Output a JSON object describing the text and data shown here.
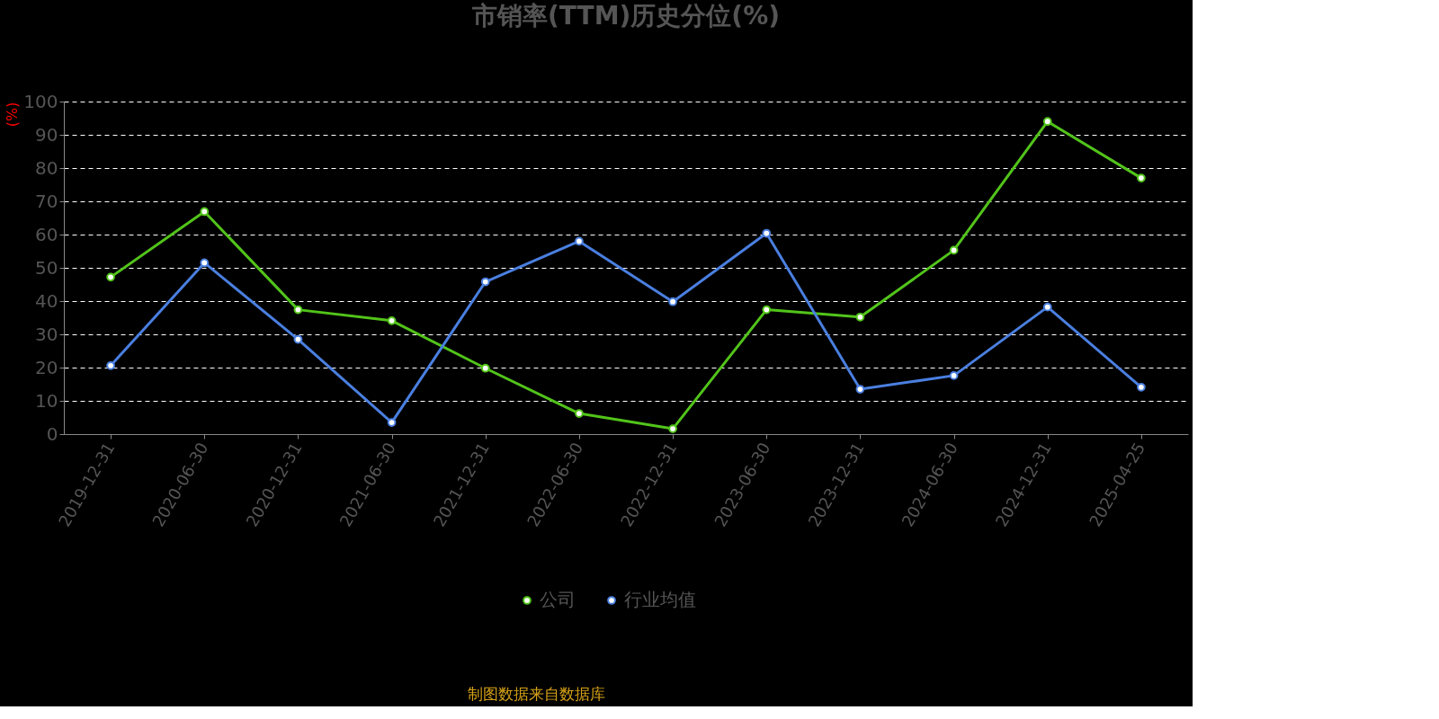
{
  "chart_data": {
    "type": "line",
    "title": "市销率(TTM)历史分位(%)",
    "ylabel": "(%)",
    "categories": [
      "2019-12-31",
      "2020-06-30",
      "2020-12-31",
      "2021-06-30",
      "2021-12-31",
      "2022-06-30",
      "2022-12-31",
      "2023-06-30",
      "2023-12-31",
      "2024-06-30",
      "2024-12-31",
      "2025-04-25"
    ],
    "series": [
      {
        "name": "公司",
        "color": "#52c41a",
        "values": [
          47.2,
          66.9,
          37.4,
          34.1,
          19.8,
          6.2,
          1.6,
          37.4,
          35.2,
          55.3,
          94.0,
          77.0
        ]
      },
      {
        "name": "行业均值",
        "color": "#4a7fe0",
        "values": [
          20.6,
          51.5,
          28.5,
          3.5,
          45.8,
          58.0,
          39.8,
          60.4,
          13.5,
          17.6,
          38.2,
          14.1
        ]
      }
    ],
    "ylim": [
      0,
      100
    ],
    "yticks": [
      0,
      10,
      20,
      30,
      40,
      50,
      60,
      70,
      80,
      90,
      100
    ],
    "grid": "y",
    "legend": "bottom",
    "marker": "circle",
    "line_style": "solid",
    "annotations": [
      "制图数据来自数据库"
    ]
  }
}
